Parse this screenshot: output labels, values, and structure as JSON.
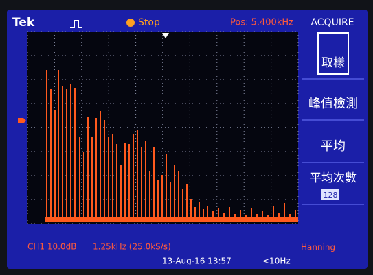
{
  "header": {
    "brand": "Tek",
    "status": "Stop",
    "position": "Pos: 5.400kHz"
  },
  "menu": {
    "title": "ACQUIRE",
    "items": [
      {
        "label": "取樣"
      },
      {
        "label": "峰值檢測"
      },
      {
        "label": "平均"
      },
      {
        "label": "平均次數",
        "value": "128"
      }
    ]
  },
  "footer": {
    "channel": "CH1 10.0dB",
    "timebase": "1.25kHz (25.0kS/s)",
    "window": "Hanning",
    "date": "13-Aug-16 13:57",
    "frequency": "<10Hz"
  }
}
